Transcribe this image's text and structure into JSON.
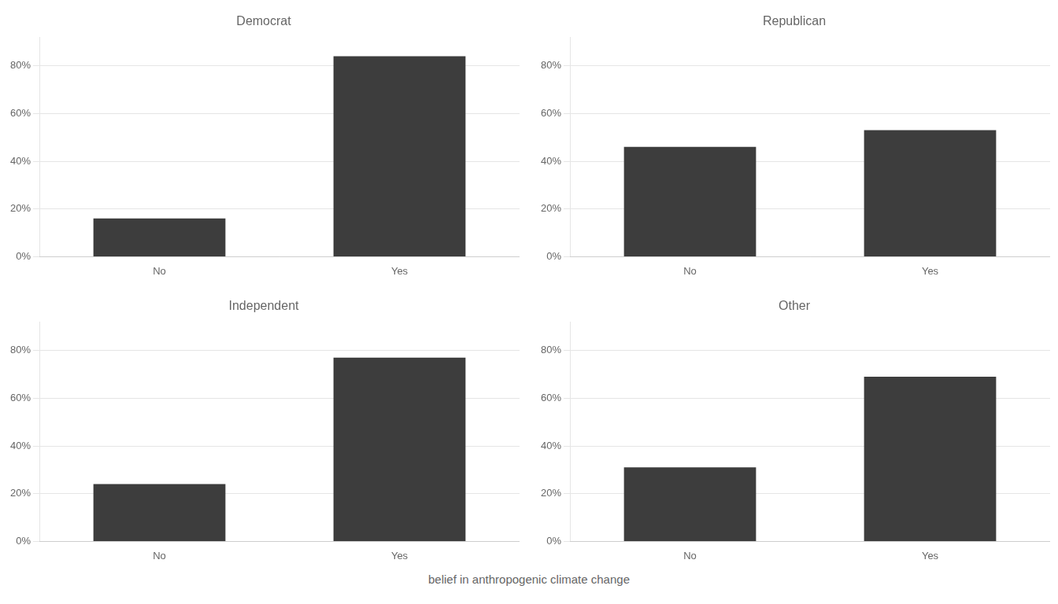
{
  "chart_data": [
    {
      "type": "bar",
      "title": "Democrat",
      "categories": [
        "No",
        "Yes"
      ],
      "values": [
        0.16,
        0.84
      ],
      "color": "#3d3d3d",
      "ylim": [
        0,
        0.92
      ],
      "yticks": [
        {
          "value": 0.0,
          "label": "0%"
        },
        {
          "value": 0.2,
          "label": "20%"
        },
        {
          "value": 0.4,
          "label": "40%"
        },
        {
          "value": 0.6,
          "label": "60%"
        },
        {
          "value": 0.8,
          "label": "80%"
        }
      ],
      "grid": true
    },
    {
      "type": "bar",
      "title": "Republican",
      "categories": [
        "No",
        "Yes"
      ],
      "values": [
        0.46,
        0.53
      ],
      "color": "#3d3d3d",
      "ylim": [
        0,
        0.92
      ],
      "yticks": [
        {
          "value": 0.0,
          "label": "0%"
        },
        {
          "value": 0.2,
          "label": "20%"
        },
        {
          "value": 0.4,
          "label": "40%"
        },
        {
          "value": 0.6,
          "label": "60%"
        },
        {
          "value": 0.8,
          "label": "80%"
        }
      ],
      "grid": true
    },
    {
      "type": "bar",
      "title": "Independent",
      "categories": [
        "No",
        "Yes"
      ],
      "values": [
        0.24,
        0.77
      ],
      "color": "#3d3d3d",
      "ylim": [
        0,
        0.92
      ],
      "yticks": [
        {
          "value": 0.0,
          "label": "0%"
        },
        {
          "value": 0.2,
          "label": "20%"
        },
        {
          "value": 0.4,
          "label": "40%"
        },
        {
          "value": 0.6,
          "label": "60%"
        },
        {
          "value": 0.8,
          "label": "80%"
        }
      ],
      "grid": true
    },
    {
      "type": "bar",
      "title": "Other",
      "categories": [
        "No",
        "Yes"
      ],
      "values": [
        0.31,
        0.69
      ],
      "color": "#3d3d3d",
      "ylim": [
        0,
        0.92
      ],
      "yticks": [
        {
          "value": 0.0,
          "label": "0%"
        },
        {
          "value": 0.2,
          "label": "20%"
        },
        {
          "value": 0.4,
          "label": "40%"
        },
        {
          "value": 0.6,
          "label": "60%"
        },
        {
          "value": 0.8,
          "label": "80%"
        }
      ],
      "grid": true
    }
  ],
  "xlabel": "belief in anthropogenic climate change"
}
